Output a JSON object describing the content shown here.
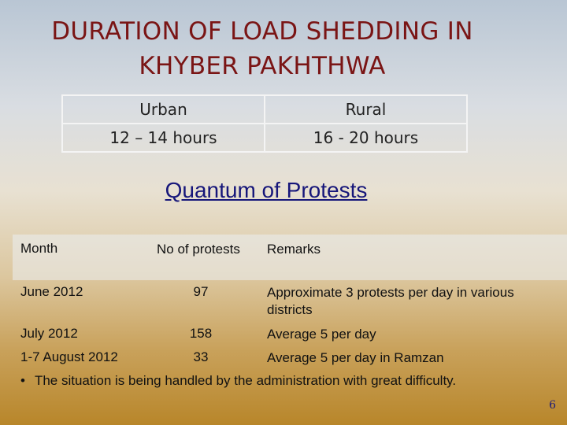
{
  "slide": {
    "title_line1": "DURATION OF LOAD SHEDDING IN",
    "title_line2": "KHYBER PAKHTHWA",
    "load_shedding": {
      "urban_label": "Urban",
      "rural_label": "Rural",
      "urban_value": "12 – 14 hours",
      "rural_value": "16 - 20 hours"
    },
    "protests_heading": "Quantum of Protests",
    "protests_table": {
      "headers": [
        "Month",
        "No of protests",
        "Remarks"
      ],
      "rows": [
        {
          "month": "June 2012",
          "count": "97",
          "remarks": "Approximate 3 protests per day in various districts"
        },
        {
          "month": "July 2012",
          "count": "158",
          "remarks": "Average 5 per day"
        },
        {
          "month": "1-7 August 2012",
          "count": "33",
          "remarks": "Average 5 per day in Ramzan"
        }
      ]
    },
    "bullet": "The situation is being handled by the administration with great difficulty.",
    "page_number": "6"
  }
}
